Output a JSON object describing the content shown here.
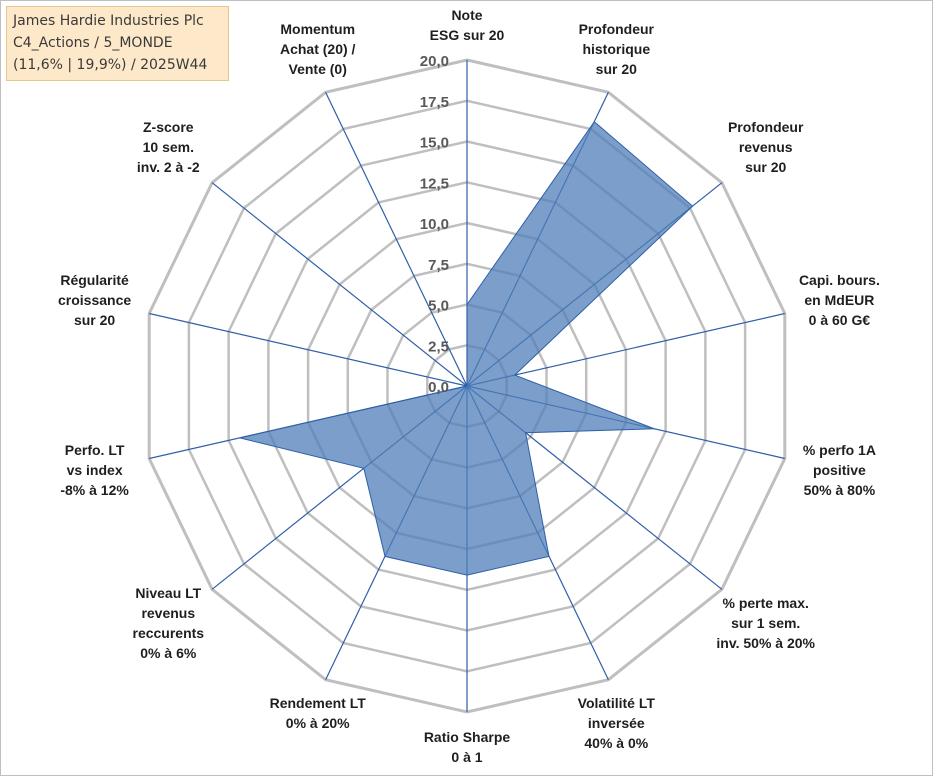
{
  "info_box": {
    "line1": "James Hardie Industries Plc",
    "line2": "C4_Actions / 5_MONDE",
    "line3": "(11,6% | 19,9%) / 2025W44"
  },
  "colors": {
    "fill": "#4f7fb8",
    "fill_opacity": "0.75",
    "series_line": "#2f5fa8",
    "grid": "#bfbfbf",
    "spoke": "#2f5fa8"
  },
  "chart_data": {
    "type": "radar",
    "title": "",
    "r_min": 0,
    "r_max": 20,
    "ticks": [
      "0,0",
      "2,5",
      "5,0",
      "7,5",
      "10,0",
      "12,5",
      "15,0",
      "17,5",
      "20,0"
    ],
    "tick_values": [
      0,
      2.5,
      5,
      7.5,
      10,
      12.5,
      15,
      17.5,
      20
    ],
    "axes": [
      {
        "lines": [
          "Note",
          "ESG sur 20"
        ]
      },
      {
        "lines": [
          "Profondeur",
          "historique",
          "sur 20"
        ]
      },
      {
        "lines": [
          "Profondeur",
          "revenus",
          "sur 20"
        ]
      },
      {
        "lines": [
          "Capi. bours.",
          "en MdEUR",
          "0 à 60 G€"
        ]
      },
      {
        "lines": [
          "% perfo 1A",
          "positive",
          "50% à 80%"
        ]
      },
      {
        "lines": [
          "% perte max.",
          "sur 1 sem.",
          "inv. 50% à 20%"
        ]
      },
      {
        "lines": [
          "Volatilité LT",
          "inversée",
          "40% à 0%"
        ]
      },
      {
        "lines": [
          "Ratio Sharpe",
          "0 à 1"
        ]
      },
      {
        "lines": [
          "Rendement LT",
          "0% à 20%"
        ]
      },
      {
        "lines": [
          "Niveau LT",
          "revenus",
          "reccurents",
          "0% à 6%"
        ]
      },
      {
        "lines": [
          "Perfo. LT",
          "vs index",
          "-8% à 12%"
        ]
      },
      {
        "lines": [
          "Régularité",
          "croissance",
          "sur 20"
        ]
      },
      {
        "lines": [
          "Z-score",
          "10 sem.",
          "inv. 2 à -2"
        ]
      },
      {
        "lines": [
          "Momentum",
          "Achat (20) /",
          "Vente (0)"
        ]
      }
    ],
    "series": [
      {
        "name": "James Hardie Industries Plc",
        "values": [
          5.0,
          18.0,
          17.7,
          3.0,
          11.8,
          4.6,
          11.6,
          11.6,
          11.6,
          8.1,
          14.3,
          0,
          0,
          0
        ]
      }
    ]
  }
}
